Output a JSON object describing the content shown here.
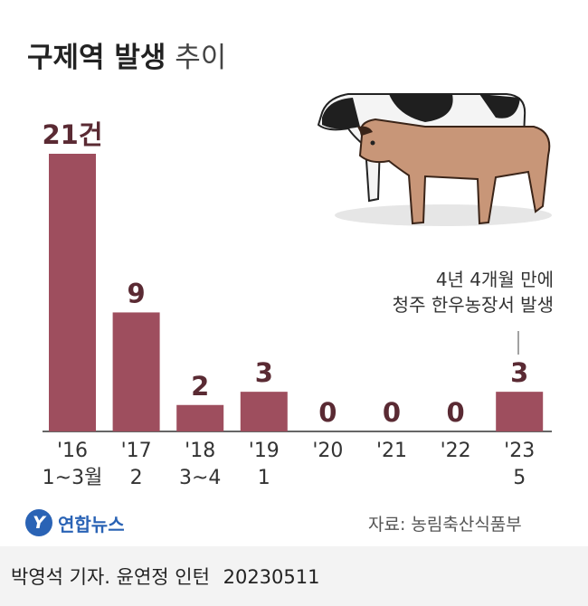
{
  "title": {
    "strong": "구제역 발생",
    "light": "추이"
  },
  "annotation": {
    "line1": "4년 4개월 만에",
    "line2": "청주 한우농장서 발생"
  },
  "source": "자료: 농림축산식품부",
  "logo": {
    "mark": "Y",
    "text": "연합뉴스"
  },
  "footer": {
    "byline": "박영석 기자. 윤연정 인턴",
    "date": "20230511"
  },
  "colors": {
    "bar": "#9e4e5e",
    "value_label": "#5a2a33",
    "axis": "#333333"
  },
  "chart_data": {
    "type": "bar",
    "categories": [
      {
        "year": "'16",
        "sub": "1~3월"
      },
      {
        "year": "'17",
        "sub": "2"
      },
      {
        "year": "'18",
        "sub": "3~4"
      },
      {
        "year": "'19",
        "sub": "1"
      },
      {
        "year": "'20",
        "sub": ""
      },
      {
        "year": "'21",
        "sub": ""
      },
      {
        "year": "'22",
        "sub": ""
      },
      {
        "year": "'23",
        "sub": "5"
      }
    ],
    "values": [
      21,
      9,
      2,
      3,
      0,
      0,
      0,
      3
    ],
    "value_labels": [
      "21건",
      "9",
      "2",
      "3",
      "0",
      "0",
      "0",
      "3"
    ],
    "ylim": [
      0,
      21
    ]
  }
}
